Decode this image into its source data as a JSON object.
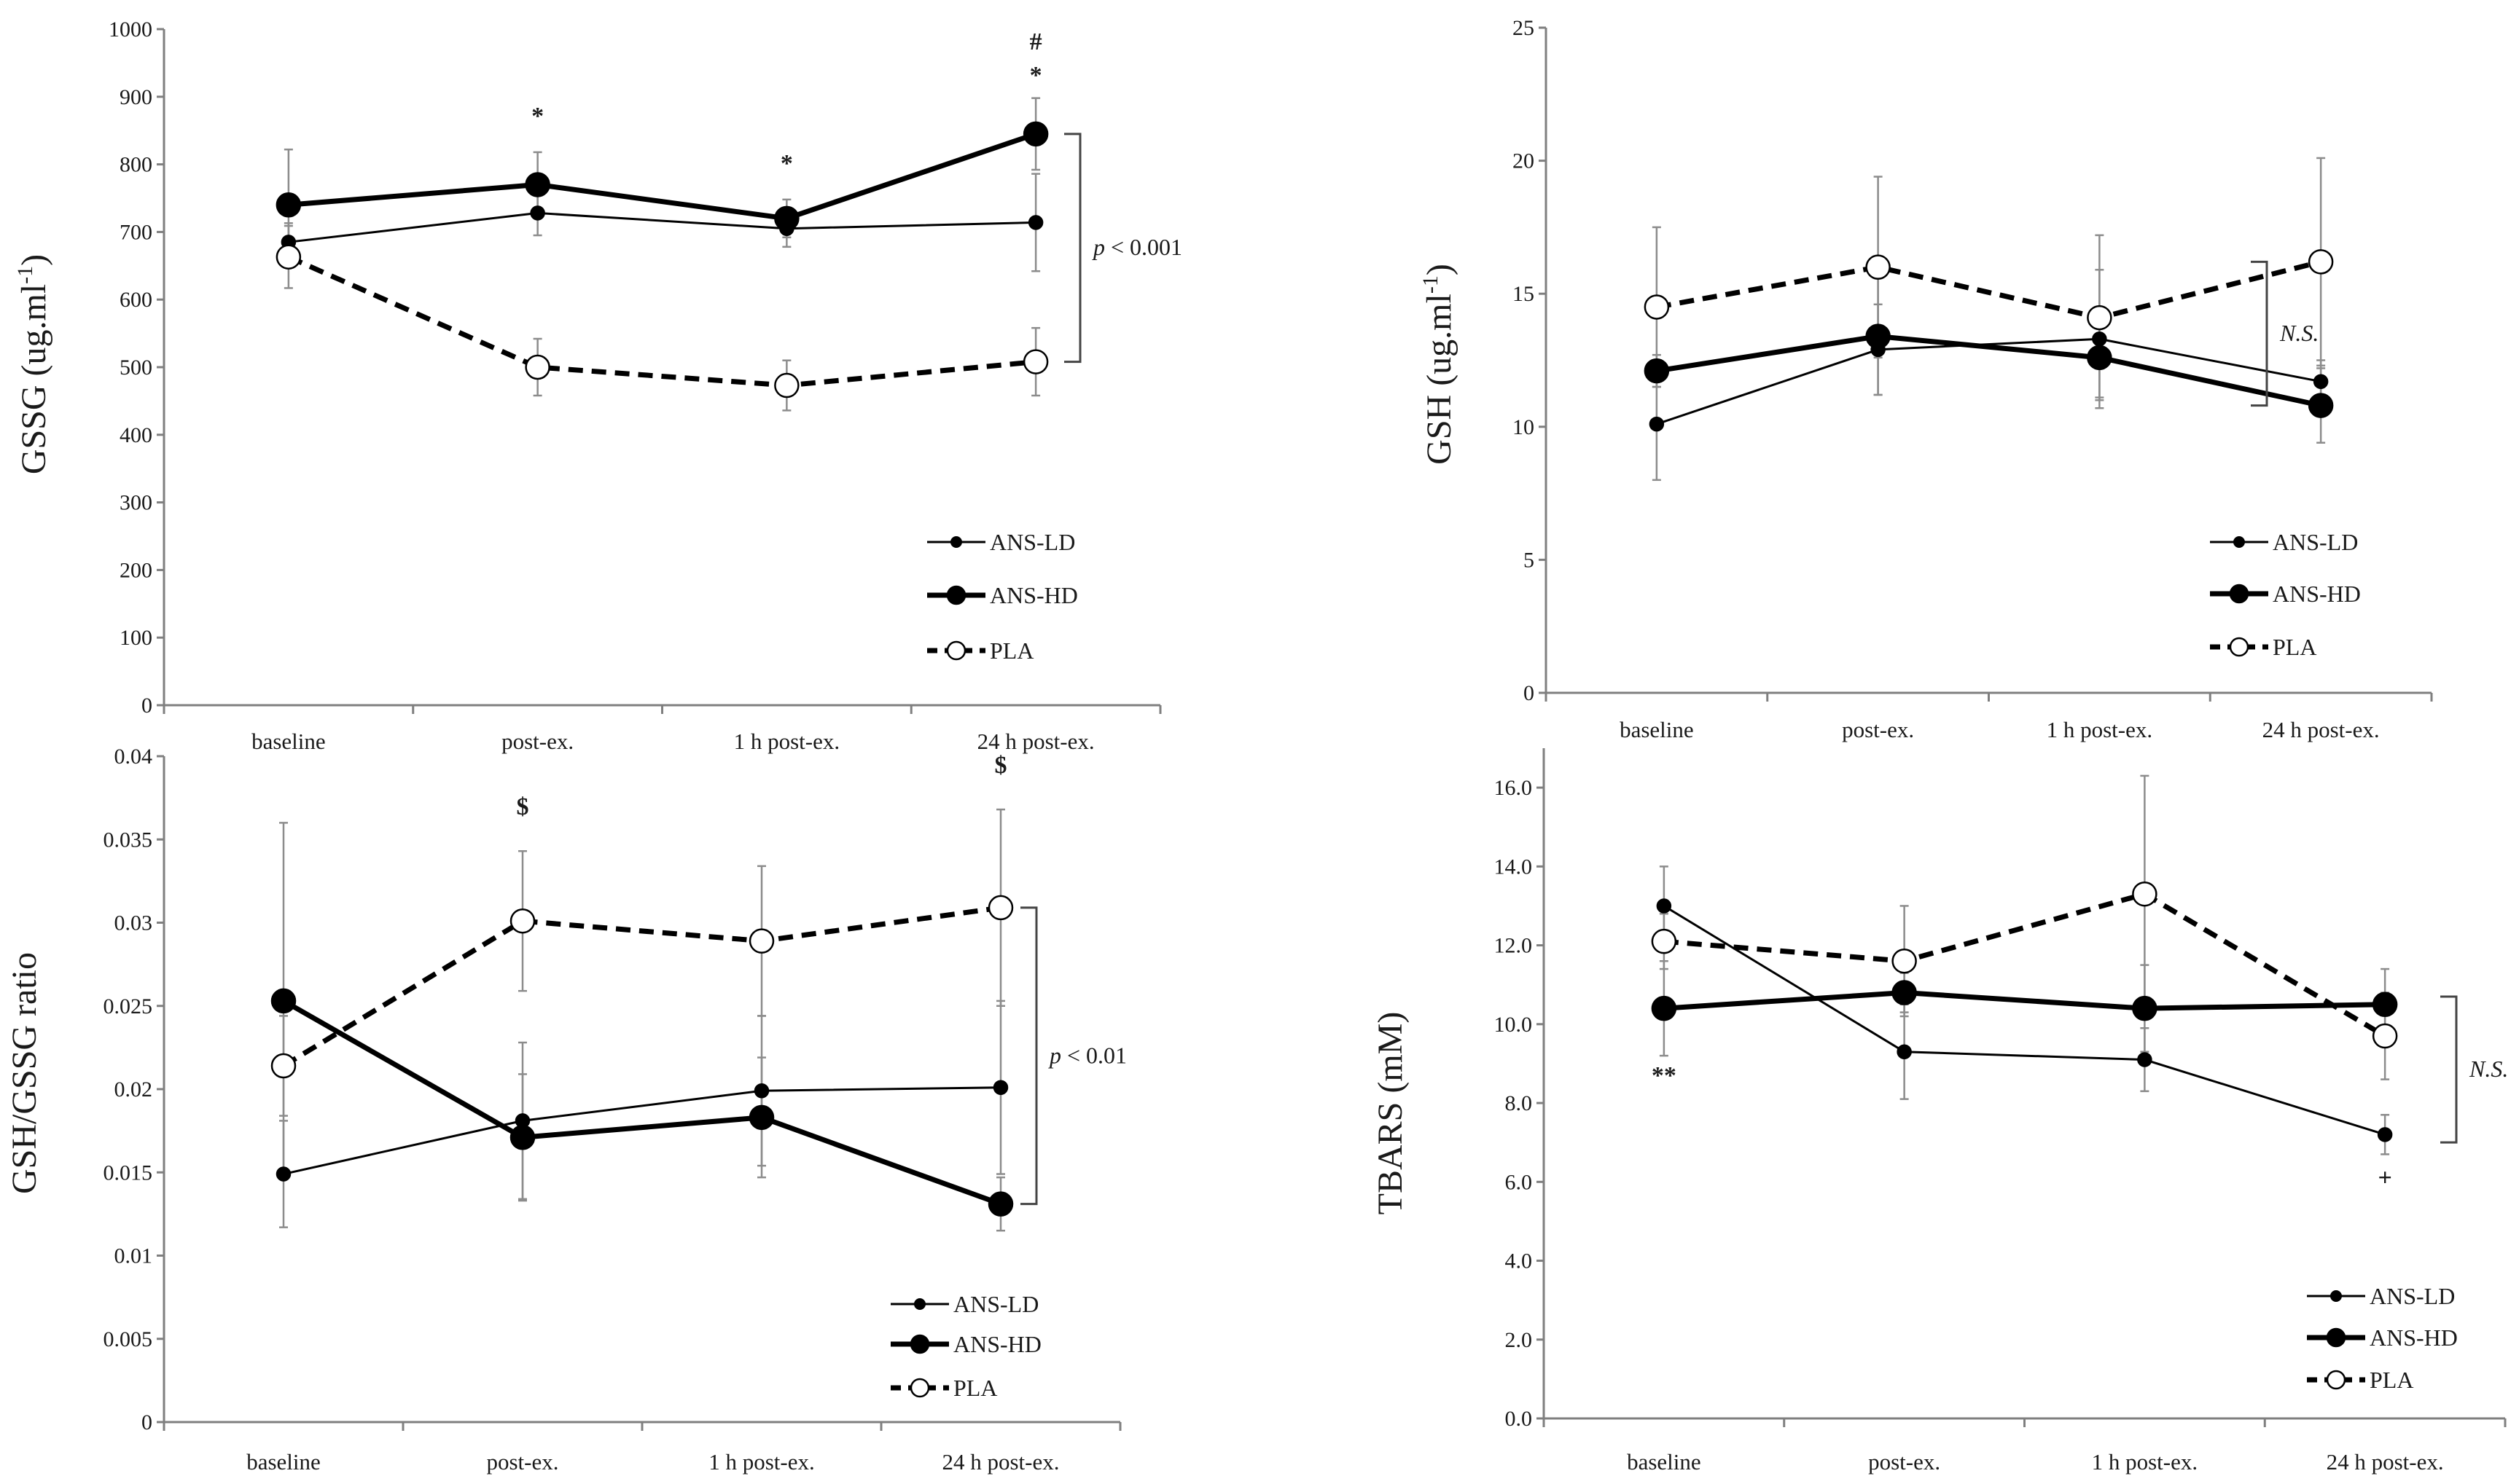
{
  "chart_data": [
    {
      "type": "line",
      "ylabel": "GSSG (ug.ml",
      "ylabel_sup": "-1",
      "ylabel_suffix": ")",
      "categories": [
        "baseline",
        "post-ex.",
        "1 h post-ex.",
        "24 h post-ex."
      ],
      "ylim": [
        0,
        1000
      ],
      "yticks": [
        0,
        100,
        200,
        300,
        400,
        500,
        600,
        700,
        800,
        900,
        1000
      ],
      "tick_decimals": 0,
      "series": [
        {
          "name": "ANS-LD",
          "values": [
            685,
            728,
            705,
            714
          ],
          "sd": [
            28,
            33,
            27,
            72
          ]
        },
        {
          "name": "ANS-HD",
          "values": [
            740,
            770,
            720,
            845
          ],
          "sd": [
            82,
            48,
            28,
            53
          ]
        },
        {
          "name": "PLA",
          "values": [
            663,
            500,
            473,
            508
          ],
          "sd": [
            46,
            42,
            37,
            50
          ]
        }
      ],
      "annotations": [
        {
          "text": "*",
          "category": 1,
          "y": 860
        },
        {
          "text": "*",
          "category": 2,
          "y": 790
        },
        {
          "text": "*",
          "category": 3,
          "y": 920
        },
        {
          "text": "#",
          "category": 3,
          "y": 970
        }
      ],
      "bracket": {
        "from": 845,
        "to": 508,
        "label": "p < 0.001",
        "italic_prefix": "p",
        "rest": " < 0.001"
      },
      "legend_position": "bottom-right"
    },
    {
      "type": "line",
      "ylabel": "GSH (ug.ml",
      "ylabel_sup": "-1",
      "ylabel_suffix": ")",
      "categories": [
        "baseline",
        "post-ex.",
        "1 h post-ex.",
        "24 h post-ex."
      ],
      "ylim": [
        0,
        25
      ],
      "yticks": [
        0,
        5,
        10,
        15,
        20,
        25
      ],
      "tick_decimals": 0,
      "series": [
        {
          "name": "ANS-LD",
          "values": [
            10.1,
            12.9,
            13.3,
            11.7
          ],
          "sd": [
            2.1,
            1.7,
            2.6,
            0.8
          ]
        },
        {
          "name": "ANS-HD",
          "values": [
            12.1,
            13.4,
            12.6,
            10.8
          ],
          "sd": [
            0.6,
            2.2,
            1.5,
            1.4
          ]
        },
        {
          "name": "PLA",
          "values": [
            14.5,
            16.0,
            14.1,
            16.2
          ],
          "sd": [
            3.0,
            3.4,
            3.1,
            3.9
          ]
        }
      ],
      "annotations": [],
      "bracket": {
        "from": 16.2,
        "to": 10.8,
        "label": "N.S.",
        "italic_prefix": "N.S.",
        "rest": ""
      },
      "legend_position": "bottom-right"
    },
    {
      "type": "line",
      "ylabel": "GSH/GSSG ratio",
      "ylabel_sup": "",
      "ylabel_suffix": "",
      "categories": [
        "baseline",
        "post-ex.",
        "1 h post-ex.",
        "24 h post-ex."
      ],
      "ylim": [
        0,
        0.04
      ],
      "yticks": [
        0,
        0.005,
        0.01,
        0.015,
        0.02,
        0.025,
        0.03,
        0.035,
        0.04
      ],
      "tick_decimals": -1,
      "series": [
        {
          "name": "ANS-LD",
          "values": [
            0.0149,
            0.0181,
            0.0199,
            0.0201
          ],
          "sd": [
            0.0032,
            0.0047,
            0.0045,
            0.0052
          ]
        },
        {
          "name": "ANS-HD",
          "values": [
            0.0253,
            0.0171,
            0.0183,
            0.0131
          ],
          "sd": [
            0.0107,
            0.0038,
            0.0036,
            0.0016
          ]
        },
        {
          "name": "PLA",
          "values": [
            0.0214,
            0.0301,
            0.0289,
            0.0309
          ],
          "sd": [
            0.003,
            0.0042,
            0.0045,
            0.0059
          ]
        }
      ],
      "annotations": [
        {
          "text": "$",
          "category": 1,
          "y": 0.0365
        },
        {
          "text": "$",
          "category": 3,
          "y": 0.039
        }
      ],
      "bracket": {
        "from": 0.0309,
        "to": 0.0131,
        "label": "p < 0.01",
        "italic_prefix": "p",
        "rest": " < 0.01"
      },
      "legend_position": "bottom-right"
    },
    {
      "type": "line",
      "ylabel": "TBARS (mM)",
      "ylabel_sup": "",
      "ylabel_suffix": "",
      "categories": [
        "baseline",
        "post-ex.",
        "1 h post-ex.",
        "24 h post-ex."
      ],
      "ylim": [
        0,
        17
      ],
      "yticks": [
        0,
        2,
        4,
        6,
        8,
        10,
        12,
        14,
        16
      ],
      "tick_decimals": 1,
      "series": [
        {
          "name": "ANS-LD",
          "values": [
            13.0,
            9.3,
            9.1,
            7.2
          ],
          "sd": [
            1.0,
            1.2,
            0.8,
            0.5
          ]
        },
        {
          "name": "ANS-HD",
          "values": [
            10.4,
            10.8,
            10.4,
            10.5
          ],
          "sd": [
            1.2,
            0.5,
            1.1,
            0.9
          ]
        },
        {
          "name": "PLA",
          "values": [
            12.1,
            11.6,
            13.3,
            9.7
          ],
          "sd": [
            0.7,
            1.4,
            3.0,
            1.1
          ]
        }
      ],
      "annotations": [
        {
          "text": "**",
          "category": 0,
          "y": 8.5
        },
        {
          "text": "+",
          "category": 3,
          "y": 5.9
        }
      ],
      "bracket": {
        "from": 10.7,
        "to": 7.0,
        "label": "N.S.",
        "italic_prefix": "N.S.",
        "rest": ""
      },
      "legend_position": "bottom-right"
    }
  ],
  "colors": {
    "line": "#000000",
    "error_bar": "#8c8c8c",
    "axis": "#7f7f7f"
  }
}
